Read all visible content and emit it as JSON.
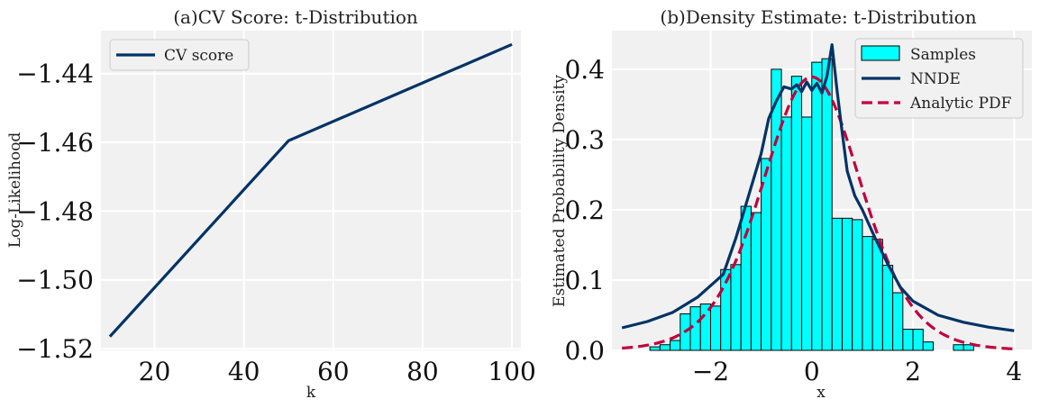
{
  "chart_data": [
    {
      "type": "line",
      "title": "(a)CV Score: t-Distribution",
      "xlabel": "k",
      "ylabel": "Log-Likelihood",
      "xlim": [
        8,
        102
      ],
      "ylim": [
        -1.5205,
        -1.4275
      ],
      "xticks": [
        20,
        40,
        60,
        80,
        100
      ],
      "xtick_labels": [
        "20",
        "40",
        "60",
        "80",
        "100"
      ],
      "yticks": [
        -1.52,
        -1.5,
        -1.48,
        -1.46,
        -1.44
      ],
      "ytick_labels": [
        "−1.52",
        "−1.50",
        "−1.48",
        "−1.46",
        "−1.44"
      ],
      "grid": true,
      "legend_position": "top-left",
      "series": [
        {
          "name": "CV score",
          "color": "#003366",
          "x": [
            10,
            50,
            100
          ],
          "y": [
            -1.5165,
            -1.4595,
            -1.4315
          ]
        }
      ]
    },
    {
      "type": "bar",
      "title": "(b)Density Estimate: t-Distribution",
      "xlabel": "x",
      "ylabel": "Estimated Probability Density",
      "xlim": [
        -3.95,
        4.35
      ],
      "ylim": [
        0,
        0.455
      ],
      "xticks": [
        -2,
        0,
        2,
        4
      ],
      "xtick_labels": [
        "−2",
        "0",
        "2",
        "4"
      ],
      "yticks": [
        0,
        0.1,
        0.2,
        0.3,
        0.4
      ],
      "ytick_labels": [
        "0.0",
        "0.1",
        "0.2",
        "0.3",
        "0.4"
      ],
      "grid": true,
      "legend_position": "top-right",
      "histogram": {
        "name": "Samples",
        "color": "#00ffff",
        "edge_color": "#000000",
        "bin_width": 0.2,
        "bin_starts": [
          -3.2,
          -3.0,
          -2.8,
          -2.6,
          -2.4,
          -2.2,
          -2.0,
          -1.8,
          -1.6,
          -1.4,
          -1.2,
          -1.0,
          -0.8,
          -0.6,
          -0.4,
          -0.2,
          0.0,
          0.2,
          0.4,
          0.6,
          0.8,
          1.0,
          1.2,
          1.4,
          1.6,
          1.8,
          2.0,
          2.2,
          2.4,
          2.6,
          2.8,
          3.0,
          3.2,
          3.4
        ],
        "heights": [
          0.005,
          0.008,
          0.014,
          0.052,
          0.062,
          0.066,
          0.063,
          0.115,
          0.122,
          0.205,
          0.196,
          0.273,
          0.4,
          0.332,
          0.39,
          0.332,
          0.41,
          0.415,
          0.188,
          0.188,
          0.186,
          0.162,
          0.158,
          0.121,
          0.082,
          0.03,
          0.03,
          0.012,
          0.0,
          0.0,
          0.008,
          0.008,
          0.0,
          0.0
        ]
      },
      "series": [
        {
          "name": "NNDE",
          "color": "#003366",
          "style": "solid",
          "x": [
            -3.75,
            -3.25,
            -2.75,
            -2.25,
            -1.75,
            -1.5,
            -1.25,
            -1.0,
            -0.85,
            -0.7,
            -0.55,
            -0.4,
            -0.3,
            -0.2,
            -0.1,
            0.0,
            0.1,
            0.2,
            0.3,
            0.4,
            0.5,
            0.6,
            0.7,
            0.85,
            1.0,
            1.25,
            1.5,
            1.75,
            2.0,
            2.5,
            3.0,
            3.5,
            4.0
          ],
          "y": [
            0.032,
            0.041,
            0.054,
            0.076,
            0.108,
            0.16,
            0.22,
            0.28,
            0.33,
            0.355,
            0.375,
            0.372,
            0.378,
            0.368,
            0.382,
            0.37,
            0.38,
            0.366,
            0.39,
            0.435,
            0.37,
            0.31,
            0.255,
            0.22,
            0.2,
            0.16,
            0.123,
            0.09,
            0.07,
            0.05,
            0.04,
            0.033,
            0.028
          ]
        },
        {
          "name": "Analytic PDF",
          "color": "#c0003c",
          "style": "dashed",
          "pdf": "t",
          "df": 10,
          "x_range": [
            -3.75,
            4.0
          ]
        }
      ]
    }
  ]
}
